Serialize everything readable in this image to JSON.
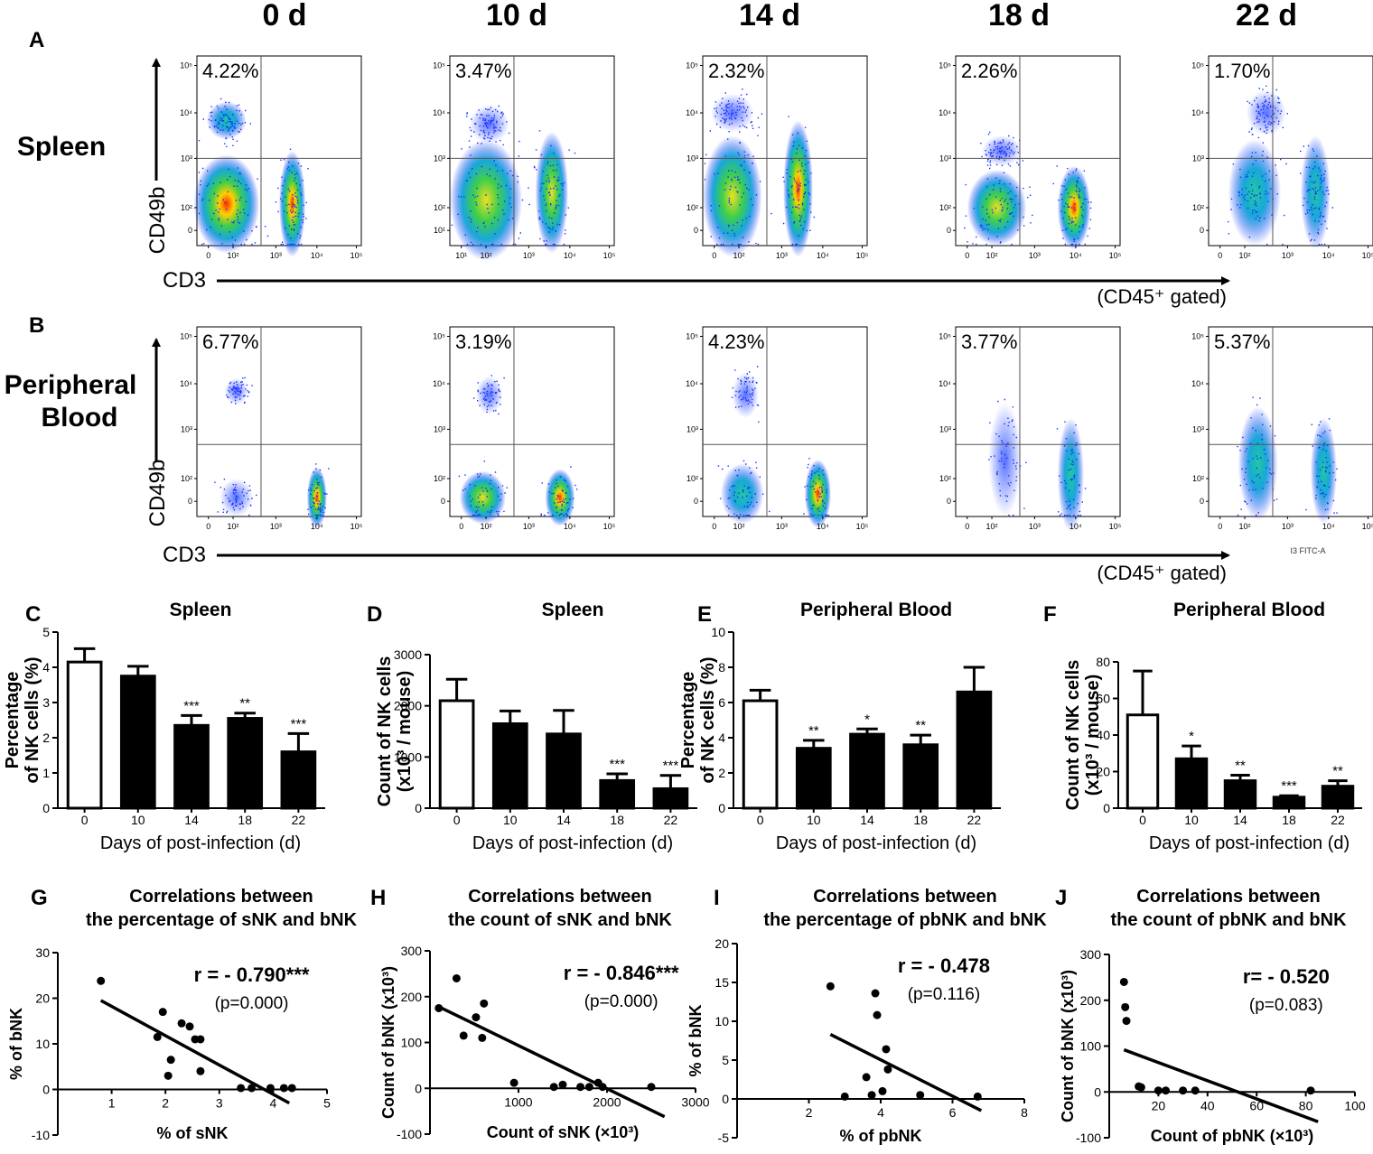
{
  "columns": [
    "0 d",
    "10 d",
    "14 d",
    "18 d",
    "22 d"
  ],
  "panel_letters": [
    "A",
    "B",
    "C",
    "D",
    "E",
    "F",
    "G",
    "H",
    "I",
    "J"
  ],
  "rows": [
    {
      "name": "Spleen",
      "y_axis": "CD49b",
      "x_axis": "CD3",
      "gate_note": "(CD45⁺ gated)",
      "percents": [
        "4.22%",
        "3.47%",
        "2.32%",
        "2.26%",
        "1.70%"
      ],
      "y_ticks": [
        [
          "10⁵",
          "10⁴",
          "10³",
          "10²",
          "0"
        ],
        [
          "10⁵",
          "10⁴",
          "10³",
          "10²",
          "10¹"
        ],
        [
          "10⁵",
          "10⁴",
          "10³",
          "10²",
          "0"
        ],
        [
          "10⁵",
          "10⁴",
          "10³",
          "10²",
          "0"
        ],
        [
          "10⁵",
          "10⁴",
          "10³",
          "10²",
          "0"
        ]
      ],
      "x_ticks": [
        [
          "0",
          "10²",
          "10³",
          "10⁴",
          "10⁵"
        ],
        [
          "10¹",
          "10²",
          "10³",
          "10⁴",
          "10⁵"
        ],
        [
          "0",
          "10²",
          "10³",
          "10⁴",
          "10⁵"
        ],
        [
          "0",
          "10²",
          "10³",
          "10⁴",
          "10⁵"
        ],
        [
          "0",
          "10²",
          "10³",
          "10⁴",
          "10⁵"
        ]
      ]
    },
    {
      "name_line1": "Peripheral",
      "name_line2": "Blood",
      "y_axis": "CD49b",
      "x_axis": "CD3",
      "gate_note": "(CD45⁺ gated)",
      "percents": [
        "6.77%",
        "3.19%",
        "4.23%",
        "3.77%",
        "5.37%"
      ],
      "stray_label": "I3 FITC-A",
      "y_ticks": [
        [
          "10⁵",
          "10⁴",
          "10³",
          "10²",
          "0"
        ],
        [
          "10⁵",
          "10⁴",
          "10³",
          "10²",
          "0"
        ],
        [
          "10⁵",
          "10⁴",
          "10³",
          "10²",
          "0"
        ],
        [
          "10⁵",
          "10⁴",
          "10³",
          "10²",
          "0"
        ],
        [
          "10⁵",
          "10⁴",
          "10³",
          "10²",
          "0"
        ]
      ],
      "x_ticks": [
        [
          "0",
          "10²",
          "10³",
          "10⁴",
          "10⁵"
        ],
        [
          "0",
          "10²",
          "10³",
          "10⁴",
          "10⁵"
        ],
        [
          "0",
          "10²",
          "10³",
          "10⁴",
          "10⁵"
        ],
        [
          "0",
          "10²",
          "10³",
          "10⁴",
          "10⁵"
        ],
        [
          "0",
          "10²",
          "10³",
          "10⁴",
          "10⁵"
        ]
      ]
    }
  ],
  "chart_data": [
    {
      "panel": "C",
      "type": "bar",
      "title": "Spleen",
      "categories": [
        "0",
        "10",
        "14",
        "18",
        "22"
      ],
      "values": [
        4.15,
        3.75,
        2.35,
        2.55,
        1.6
      ],
      "errors": [
        0.38,
        0.28,
        0.28,
        0.15,
        0.52
      ],
      "significance": [
        "",
        "",
        "***",
        "**",
        "***"
      ],
      "xlabel": "Days of post-infection (d)",
      "ylabel": "Percentage of NK cells (%)",
      "ylabel_lines": [
        "Percentage",
        "of NK cells (%)"
      ],
      "ylim": [
        0,
        5
      ],
      "yticks": [
        0,
        1,
        2,
        3,
        4,
        5
      ]
    },
    {
      "panel": "D",
      "type": "bar",
      "title": "Spleen",
      "categories": [
        "0",
        "10",
        "14",
        "18",
        "22"
      ],
      "values": [
        2100,
        1650,
        1450,
        540,
        380
      ],
      "errors": [
        420,
        250,
        460,
        130,
        260
      ],
      "significance": [
        "",
        "",
        "",
        "***",
        "***"
      ],
      "xlabel": "Days of post-infection (d)",
      "ylabel": "Count of NK cells (x10³ / mouse)",
      "ylabel_lines": [
        "Count of NK cells",
        "(x10³ / mouse)"
      ],
      "ylim": [
        0,
        3000
      ],
      "yticks": [
        0,
        1000,
        2000,
        3000
      ]
    },
    {
      "panel": "E",
      "type": "bar",
      "title": "Peripheral Blood",
      "categories": [
        "0",
        "10",
        "14",
        "18",
        "22"
      ],
      "values": [
        6.1,
        3.4,
        4.2,
        3.6,
        6.6
      ],
      "errors": [
        0.6,
        0.45,
        0.3,
        0.55,
        1.4
      ],
      "significance": [
        "",
        "**",
        "*",
        "**",
        ""
      ],
      "xlabel": "Days of post-infection (d)",
      "ylabel": "Percentage of NK cells (%)",
      "ylabel_lines": [
        "Percentage",
        "of NK cells (%)"
      ],
      "ylim": [
        0,
        10
      ],
      "yticks": [
        0,
        2,
        4,
        6,
        8,
        10
      ]
    },
    {
      "panel": "F",
      "type": "bar",
      "title": "Peripheral Blood",
      "categories": [
        "0",
        "10",
        "14",
        "18",
        "22"
      ],
      "values": [
        51,
        27,
        15,
        6,
        12
      ],
      "errors": [
        24,
        7,
        3,
        0.8,
        3
      ],
      "significance": [
        "",
        "*",
        "**",
        "***",
        "**"
      ],
      "xlabel": "Days of post-infection (d)",
      "ylabel": "Count of NK cells (x10³ / mouse)",
      "ylabel_lines": [
        "Count of NK cells",
        "(x10³ / mouse)"
      ],
      "ylim": [
        0,
        80
      ],
      "yticks": [
        0,
        20,
        40,
        60,
        80
      ]
    },
    {
      "panel": "G",
      "type": "scatter",
      "title_lines": [
        "Correlations between",
        "the percentage of sNK and bNK"
      ],
      "x": [
        0.8,
        1.85,
        1.95,
        2.05,
        2.1,
        2.3,
        2.45,
        2.55,
        2.65,
        2.65,
        3.4,
        3.6,
        3.95,
        4.2,
        4.35
      ],
      "y": [
        23.8,
        11.5,
        17,
        3,
        6.5,
        14.5,
        13.8,
        11,
        4,
        11,
        0.3,
        0.3,
        0.3,
        0.3,
        0.3
      ],
      "fit": {
        "x": [
          0.8,
          4.3
        ],
        "y": [
          19.5,
          -3
        ]
      },
      "r_label": "r = - 0.790***",
      "p_label": "(p=0.000)",
      "xlabel": "% of sNK",
      "ylabel": "% of bNK",
      "xlim": [
        0,
        5
      ],
      "ylim": [
        -10,
        30
      ],
      "xticks": [
        1,
        2,
        3,
        4,
        5
      ],
      "yticks": [
        -10,
        0,
        10,
        20,
        30
      ]
    },
    {
      "panel": "H",
      "type": "scatter",
      "title_lines": [
        "Correlations between",
        "the count of sNK and bNK"
      ],
      "x": [
        100,
        300,
        380,
        520,
        590,
        610,
        950,
        1400,
        1500,
        1700,
        1800,
        1900,
        1950,
        2500
      ],
      "y": [
        175,
        240,
        115,
        155,
        110,
        185,
        12,
        3,
        8,
        3,
        3,
        12,
        3,
        3
      ],
      "fit": {
        "x": [
          100,
          2650
        ],
        "y": [
          178,
          -62
        ]
      },
      "r_label": "r = - 0.846***",
      "p_label": "(p=0.000)",
      "xlabel": "Count of sNK (×10³)",
      "ylabel": "Count of bNK (x10³)",
      "xlim": [
        0,
        3000
      ],
      "ylim": [
        -100,
        300
      ],
      "xticks": [
        1000,
        2000,
        3000
      ],
      "yticks": [
        -100,
        0,
        100,
        200,
        300
      ]
    },
    {
      "panel": "I",
      "type": "scatter",
      "title_lines": [
        "Correlations between",
        "the percentage of pbNK and bNK"
      ],
      "x": [
        2.6,
        3.0,
        3.6,
        3.75,
        3.85,
        3.9,
        4.05,
        4.15,
        4.2,
        5.1,
        6.7
      ],
      "y": [
        14.5,
        0.3,
        2.8,
        0.5,
        13.6,
        10.8,
        1,
        6.4,
        3.8,
        0.5,
        0.3
      ],
      "fit": {
        "x": [
          2.6,
          6.8
        ],
        "y": [
          8.3,
          -1.5
        ]
      },
      "r_label": "r = - 0.478",
      "p_label": "(p=0.116)",
      "xlabel": "% of pbNK",
      "ylabel": "% of bNK",
      "xlim": [
        0,
        8
      ],
      "ylim": [
        -5,
        20
      ],
      "xticks": [
        2,
        4,
        6,
        8
      ],
      "yticks": [
        -5,
        0,
        5,
        10,
        15,
        20
      ]
    },
    {
      "panel": "J",
      "type": "scatter",
      "title_lines": [
        "Correlations between",
        "the count of pbNK and bNK"
      ],
      "x": [
        6,
        6.5,
        7,
        12,
        13,
        20,
        23,
        30,
        35,
        82
      ],
      "y": [
        240,
        185,
        155,
        12,
        10,
        3,
        3,
        3,
        3,
        3
      ],
      "fit": {
        "x": [
          6,
          85
        ],
        "y": [
          92,
          -65
        ]
      },
      "r_label": "r= - 0.520",
      "p_label": "(p=0.083)",
      "xlabel": "Count of pbNK (×10³)",
      "ylabel": "Count of bNK (x10³)",
      "xlim": [
        0,
        100
      ],
      "ylim": [
        -100,
        300
      ],
      "xticks": [
        20,
        40,
        60,
        80,
        100
      ],
      "yticks": [
        -100,
        0,
        100,
        200,
        300
      ]
    }
  ]
}
